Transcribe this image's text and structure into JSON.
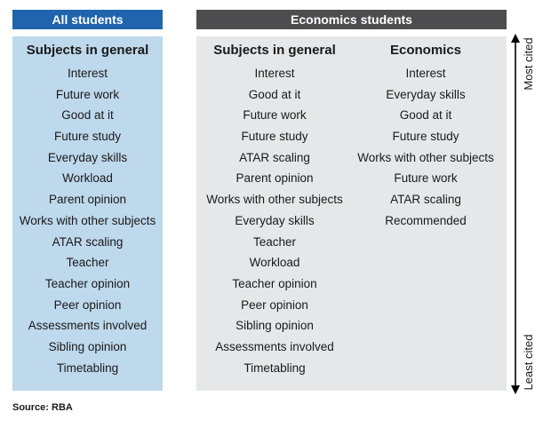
{
  "headers": {
    "all_students": "All students",
    "economics_students": "Economics students"
  },
  "columns": [
    {
      "title": "Subjects in general",
      "items": [
        "Interest",
        "Future work",
        "Good at it",
        "Future study",
        "Everyday skills",
        "Workload",
        "Parent opinion",
        "Works with other subjects",
        "ATAR scaling",
        "Teacher",
        "Teacher opinion",
        "Peer opinion",
        "Assessments involved",
        "Sibling opinion",
        "Timetabling"
      ]
    },
    {
      "title": "Subjects in general",
      "items": [
        "Interest",
        "Good at it",
        "Future work",
        "Future study",
        "ATAR scaling",
        "Parent opinion",
        "Works with other subjects",
        "Everyday skills",
        "Teacher",
        "Workload",
        "Teacher opinion",
        "Peer opinion",
        "Sibling opinion",
        "Assessments involved",
        "Timetabling"
      ]
    },
    {
      "title": "Economics",
      "items": [
        "Interest",
        "Everyday skills",
        "Good at it",
        "Future study",
        "Works with other subjects",
        "Future work",
        "ATAR scaling",
        "Recommended"
      ]
    }
  ],
  "axis": {
    "top_label": "Most cited",
    "bottom_label": "Least cited"
  },
  "source": "Source: RBA",
  "colors": {
    "all_header": "#1f64ad",
    "all_panel": "#bed8ec",
    "econ_header": "#4d4d4f",
    "econ_panel": "#e6e7e8"
  }
}
